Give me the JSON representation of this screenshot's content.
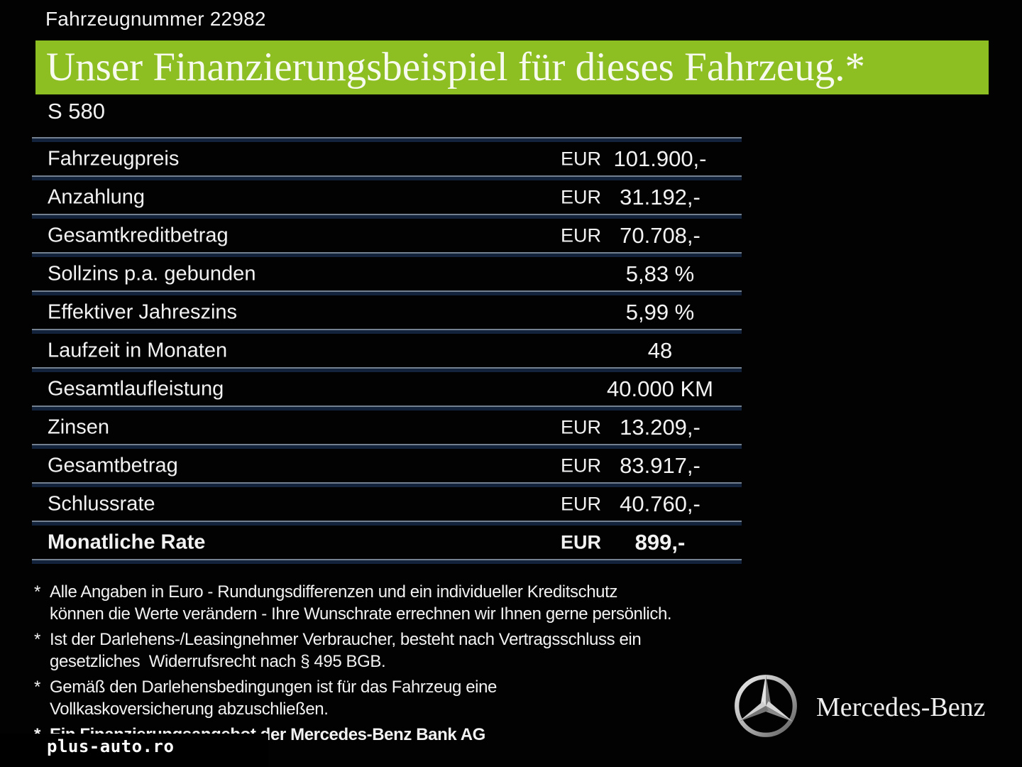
{
  "colors": {
    "banner_green": "#8dbe22",
    "separator_dark": "#14233c",
    "separator_light": "#73808f",
    "text": "#f2f2f2"
  },
  "header": {
    "vehicle_number": "Fahrzeugnummer 22982",
    "model": "S 580"
  },
  "banner": {
    "title": "Unser Finanzierungsbeispiel für dieses Fahrzeug.*"
  },
  "table": {
    "rows": [
      {
        "label": "Fahrzeugpreis",
        "currency": "EUR",
        "value": "101.900,-"
      },
      {
        "label": "Anzahlung",
        "currency": "EUR",
        "value": "31.192,-"
      },
      {
        "label": "Gesamtkreditbetrag",
        "currency": "EUR",
        "value": "70.708,-"
      },
      {
        "label": "Sollzins p.a. gebunden",
        "currency": "",
        "value": "5,83 %"
      },
      {
        "label": "Effektiver Jahreszins",
        "currency": "",
        "value": "5,99 %"
      },
      {
        "label": "Laufzeit in Monaten",
        "currency": "",
        "value": "48"
      },
      {
        "label": "Gesamtlaufleistung",
        "currency": "",
        "value": "40.000 KM"
      },
      {
        "label": "Zinsen",
        "currency": "EUR",
        "value": "13.209,-"
      },
      {
        "label": "Gesamtbetrag",
        "currency": "EUR",
        "value": "83.917,-"
      },
      {
        "label": "Schlussrate",
        "currency": "EUR",
        "value": "40.760,-"
      },
      {
        "label": "Monatliche Rate",
        "currency": "EUR",
        "value": "899,-",
        "emphasis": true
      }
    ]
  },
  "footnotes": [
    {
      "marker": "*",
      "lines": [
        "Alle Angaben in Euro - Rundungsdifferenzen und ein individueller Kreditschutz",
        "können die Werte verändern - Ihre Wunschrate errechnen wir Ihnen gerne persönlich."
      ]
    },
    {
      "marker": "*",
      "lines": [
        "Ist der Darlehens-/Leasingnehmer Verbraucher, besteht nach Vertragsschluss ein",
        "gesetzliches  Widerrufsrecht nach § 495 BGB."
      ]
    },
    {
      "marker": "*",
      "lines": [
        "Gemäß den Darlehensbedingungen ist für das Fahrzeug eine",
        "Vollkaskoversicherung abzuschließen."
      ]
    },
    {
      "marker": "*",
      "lines": [
        "Ein Finanzierungsangebot der Mercedes-Benz Bank AG"
      ],
      "emphasis": true
    }
  ],
  "watermark": {
    "text": "plus-auto.ro"
  },
  "brand": {
    "wordmark": "Mercedes-Benz",
    "logo_icon": "mercedes-star-icon"
  }
}
